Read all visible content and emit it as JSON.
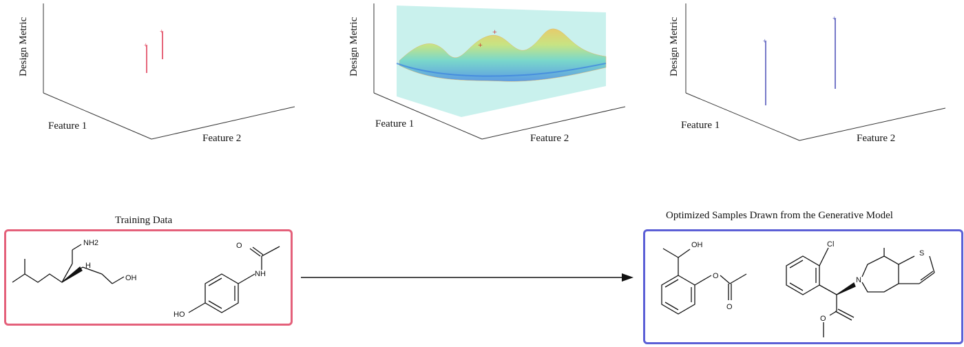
{
  "panels": [
    {
      "ylabel": "Design Metric",
      "xlabel1": "Feature 1",
      "xlabel2": "Feature 2"
    },
    {
      "ylabel": "Design Metric",
      "xlabel1": "Feature 1",
      "xlabel2": "Feature 2"
    },
    {
      "ylabel": "Design Metric",
      "xlabel1": "Feature 1",
      "xlabel2": "Feature 2"
    }
  ],
  "training": {
    "title": "Training Data",
    "border_color": "#e4607a",
    "mol1": {
      "nh2": "NH2",
      "h": "H",
      "oh": "OH"
    },
    "mol2": {
      "nh": "NH",
      "o": "O",
      "ho": "HO"
    }
  },
  "optimized": {
    "title": "Optimized Samples Drawn from the Generative Model",
    "border_color": "#5b5fd6",
    "mol1": {
      "oh": "OH",
      "o1": "O",
      "o2": "O"
    },
    "mol2": {
      "cl": "Cl",
      "s": "S",
      "n": "N",
      "o": "O"
    }
  },
  "colors": {
    "training_marks": "#e0405a",
    "optimized_marks": "#3a3fb0",
    "surface_base": "#bfeeea"
  }
}
